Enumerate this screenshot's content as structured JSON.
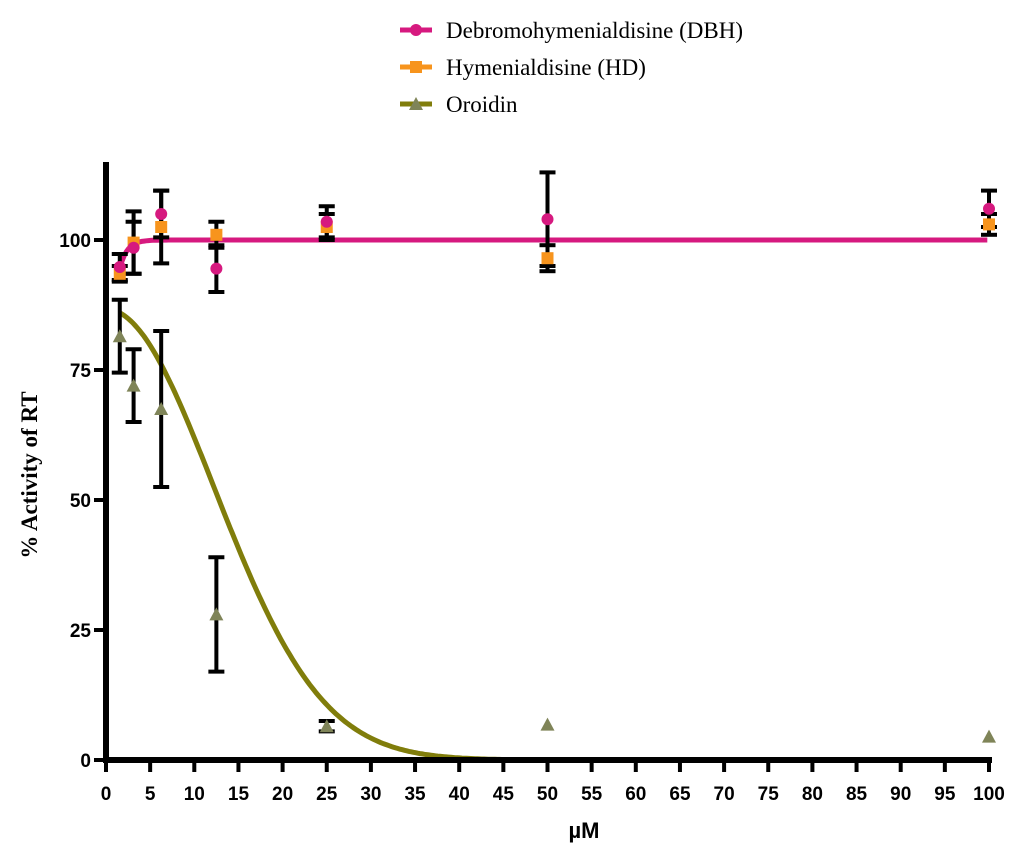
{
  "chart_data": {
    "type": "scatter",
    "title": "",
    "xlabel": "µM",
    "ylabel": "% Activity of RT",
    "xlim": [
      0,
      100
    ],
    "ylim": [
      0,
      115
    ],
    "xticks": [
      0,
      5,
      10,
      15,
      20,
      25,
      30,
      35,
      40,
      45,
      50,
      55,
      60,
      65,
      70,
      75,
      80,
      85,
      90,
      95,
      100
    ],
    "yticks": [
      0,
      25,
      50,
      75,
      100
    ],
    "legend_position": "top",
    "series": [
      {
        "name": "Debromohymenialdisine (DBH)",
        "color": "#d6197f",
        "marker": "circle",
        "points": [
          {
            "x": 1.56,
            "y": 94.8,
            "err": 2.5
          },
          {
            "x": 3.125,
            "y": 98.5,
            "err": 5.0
          },
          {
            "x": 6.25,
            "y": 105.0,
            "err": 4.5
          },
          {
            "x": 12.5,
            "y": 94.5,
            "err": 4.5
          },
          {
            "x": 25,
            "y": 103.5,
            "err": 3.0
          },
          {
            "x": 50,
            "y": 104.0,
            "err": 9.0
          },
          {
            "x": 100,
            "y": 106.0,
            "err": 3.5
          }
        ],
        "fit": {
          "model": "plateau",
          "top": 100,
          "bottom": 94.5,
          "rate": 1.2
        }
      },
      {
        "name": "Hymenialdisine (HD)",
        "color": "#f7941d",
        "marker": "square",
        "points": [
          {
            "x": 1.56,
            "y": 93.5,
            "err": 1.5
          },
          {
            "x": 3.125,
            "y": 99.5,
            "err": 6.0
          },
          {
            "x": 6.25,
            "y": 102.5,
            "err": 7.0
          },
          {
            "x": 12.5,
            "y": 101.0,
            "err": 2.5
          },
          {
            "x": 25,
            "y": 102.5,
            "err": 2.5
          },
          {
            "x": 50,
            "y": 96.5,
            "err": 2.5
          },
          {
            "x": 100,
            "y": 103.0,
            "err": 2.0
          }
        ]
      },
      {
        "name": "Oroidin",
        "color": "#7f8458",
        "line_color": "#807d0b",
        "marker": "triangle",
        "points": [
          {
            "x": 1.56,
            "y": 81.5,
            "err": 7.0
          },
          {
            "x": 3.125,
            "y": 72.0,
            "err": 7.0
          },
          {
            "x": 6.25,
            "y": 67.5,
            "err": 15.0
          },
          {
            "x": 12.5,
            "y": 28.0,
            "err": 11.0
          },
          {
            "x": 25,
            "y": 6.5,
            "err": 1.0
          },
          {
            "x": 50,
            "y": 6.8,
            "err": 0
          },
          {
            "x": 100,
            "y": 4.5,
            "err": 0
          }
        ],
        "fit": {
          "model": "gaussian_decay",
          "top": 86.7,
          "x0": 0,
          "sigma": 12.2
        }
      }
    ]
  }
}
